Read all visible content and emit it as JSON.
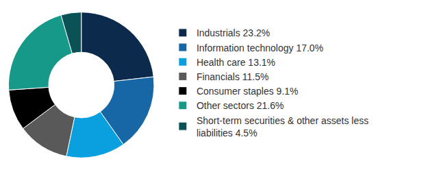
{
  "chart_data": {
    "type": "pie",
    "categories": [
      "Industrials 23.2%",
      "Information technology 17.0%",
      "Health care 13.1%",
      "Financials 11.5%",
      "Consumer staples 9.1%",
      "Other sectors 21.6%",
      "Short-term securities & other assets less liabilities 4.5%"
    ],
    "values": [
      23.2,
      17.0,
      13.1,
      11.5,
      9.1,
      21.6,
      4.5
    ],
    "colors": [
      "#0c2a4c",
      "#1766a6",
      "#0aa0df",
      "#595959",
      "#000000",
      "#17998a",
      "#0b5257"
    ],
    "legend": "right",
    "data_labels": false
  }
}
